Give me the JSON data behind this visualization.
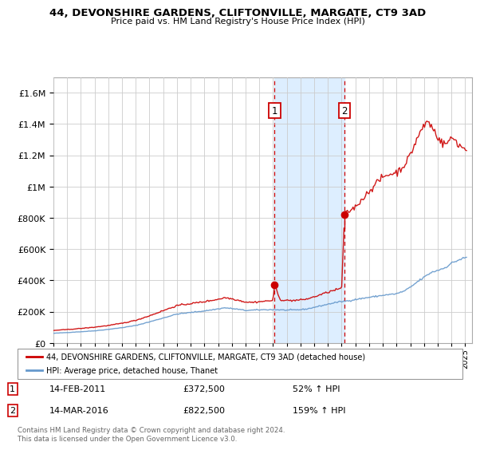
{
  "title": "44, DEVONSHIRE GARDENS, CLIFTONVILLE, MARGATE, CT9 3AD",
  "subtitle": "Price paid vs. HM Land Registry's House Price Index (HPI)",
  "legend_line1": "44, DEVONSHIRE GARDENS, CLIFTONVILLE, MARGATE, CT9 3AD (detached house)",
  "legend_line2": "HPI: Average price, detached house, Thanet",
  "footer": "Contains HM Land Registry data © Crown copyright and database right 2024.\nThis data is licensed under the Open Government Licence v3.0.",
  "sale1_date": "14-FEB-2011",
  "sale1_price": "£372,500",
  "sale1_hpi": "52% ↑ HPI",
  "sale2_date": "14-MAR-2016",
  "sale2_price": "£822,500",
  "sale2_hpi": "159% ↑ HPI",
  "sale1_value": 372500,
  "sale2_value": 822500,
  "red_color": "#cc0000",
  "blue_color": "#6699cc",
  "shade_color": "#ddeeff",
  "ylim_max": 1700000,
  "sale1_x": 2011.12,
  "sale2_x": 2016.21,
  "xmin": 1995.0,
  "xmax": 2025.5,
  "background_color": "#ffffff"
}
